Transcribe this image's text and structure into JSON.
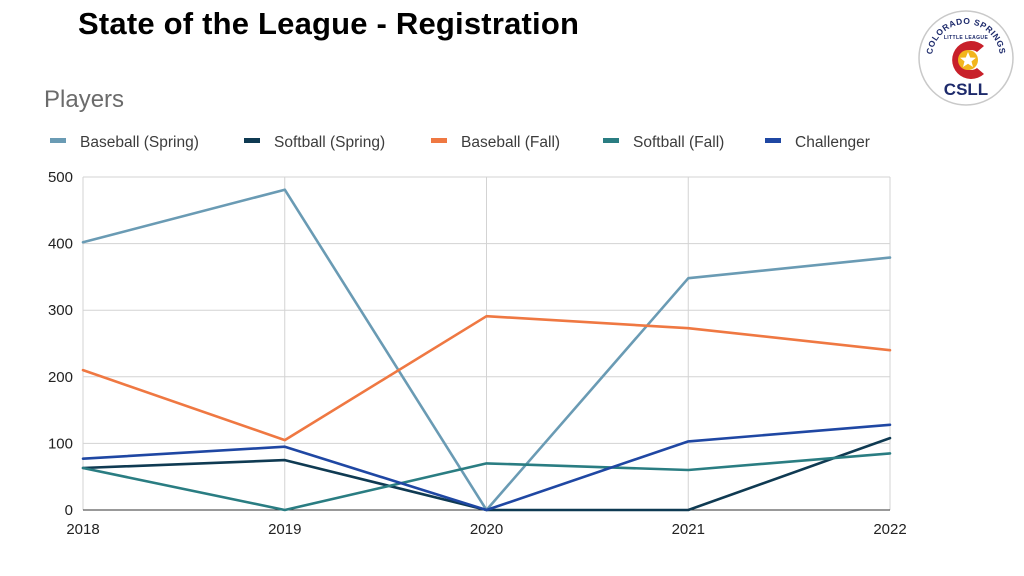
{
  "slide": {
    "title": "State of the League - Registration"
  },
  "logo": {
    "top_text": "COLORADO SPRINGS",
    "sub_text": "LITTLE LEAGUE",
    "abbr": "CSLL",
    "colors": {
      "red": "#c8202a",
      "navy": "#1d2a6b",
      "gold": "#f2b51c"
    }
  },
  "chart_data": {
    "type": "line",
    "title": "Players",
    "x": [
      "2018",
      "2019",
      "2020",
      "2021",
      "2022"
    ],
    "ylim": [
      0,
      500
    ],
    "yticks": [
      "0",
      "100",
      "200",
      "300",
      "400",
      "500"
    ],
    "grid": true,
    "legend_position": "top",
    "series": [
      {
        "name": "Baseball (Spring)",
        "color": "#6a9bb4",
        "values": [
          402,
          481,
          0,
          348,
          379
        ]
      },
      {
        "name": "Softball (Spring)",
        "color": "#0f3a52",
        "values": [
          63,
          75,
          0,
          0,
          108
        ]
      },
      {
        "name": "Baseball (Fall)",
        "color": "#ef7842",
        "values": [
          210,
          105,
          291,
          273,
          240
        ]
      },
      {
        "name": "Softball (Fall)",
        "color": "#2a7d82",
        "values": [
          63,
          0,
          70,
          60,
          85
        ]
      },
      {
        "name": "Challenger",
        "color": "#1f47a3",
        "values": [
          77,
          95,
          0,
          103,
          128
        ]
      }
    ]
  }
}
